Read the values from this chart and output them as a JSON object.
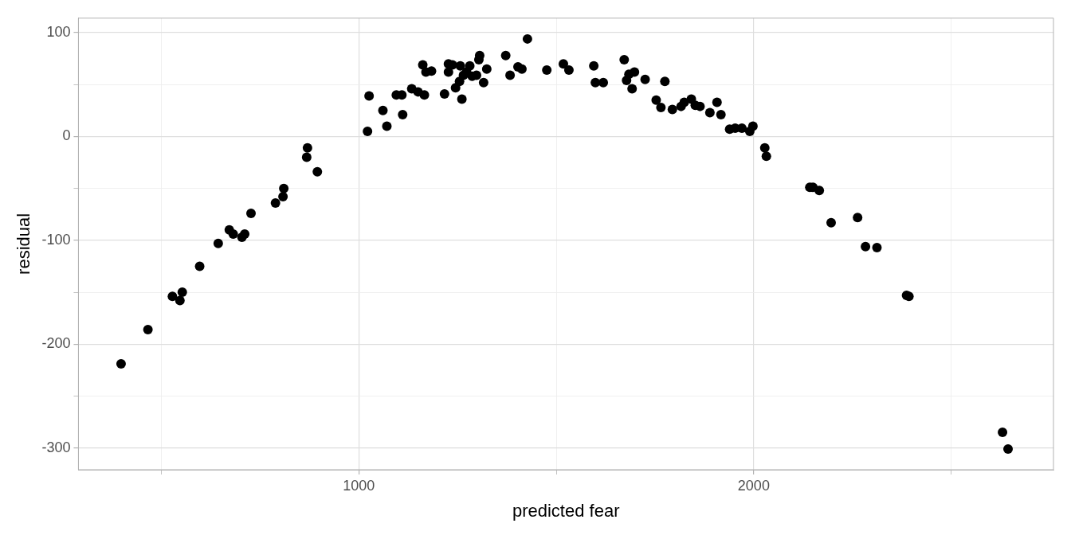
{
  "chart_data": {
    "type": "scatter",
    "xlabel": "predicted fear",
    "ylabel": "residual",
    "x": [
      398,
      466,
      528,
      547,
      553,
      597,
      644,
      672,
      682,
      704,
      711,
      727,
      789,
      808,
      810,
      870,
      868,
      895,
      1022,
      1026,
      1061,
      1071,
      1095,
      1109,
      1111,
      1134,
      1150,
      1162,
      1166,
      1170,
      1184,
      1217,
      1227,
      1227,
      1237,
      1245,
      1255,
      1257,
      1261,
      1265,
      1273,
      1281,
      1287,
      1298,
      1304,
      1306,
      1316,
      1324,
      1372,
      1383,
      1403,
      1413,
      1427,
      1476,
      1518,
      1532,
      1595,
      1599,
      1619,
      1672,
      1678,
      1684,
      1692,
      1698,
      1725,
      1753,
      1765,
      1775,
      1794,
      1816,
      1824,
      1842,
      1852,
      1864,
      1889,
      1907,
      1917,
      1939,
      1953,
      1970,
      1990,
      1998,
      2028,
      2032,
      2142,
      2150,
      2166,
      2196,
      2263,
      2283,
      2312,
      2387,
      2393,
      2630,
      2644
    ],
    "values": [
      -219,
      -186,
      -154,
      -158,
      -150,
      -125,
      -103,
      -90,
      -94,
      -97,
      -94,
      -74,
      -64,
      -58,
      -50,
      -11,
      -20,
      -34,
      5,
      39,
      25,
      10,
      40,
      40,
      21,
      46,
      43,
      69,
      40,
      62,
      63,
      41,
      70,
      62,
      69,
      47,
      53,
      68,
      36,
      59,
      62,
      68,
      58,
      59,
      74,
      78,
      52,
      65,
      78,
      59,
      67,
      65,
      94,
      64,
      70,
      64,
      68,
      52,
      52,
      74,
      54,
      60,
      46,
      62,
      55,
      35,
      28,
      53,
      26,
      29,
      33,
      36,
      30,
      29,
      23,
      33,
      21,
      7,
      8,
      8,
      5,
      10,
      -11,
      -19,
      -49,
      -49,
      -52,
      -83,
      -78,
      -106,
      -107,
      -153,
      -154,
      -285,
      -301
    ],
    "color": "#000000",
    "marker": "circle",
    "xlim": [
      290,
      2759
    ],
    "ylim": [
      -321,
      114
    ],
    "xticks": [
      {
        "value": 500,
        "label": null
      },
      1000,
      {
        "value": 1500,
        "label": null
      },
      2000,
      {
        "value": 2500,
        "label": null
      }
    ],
    "yticks": [
      -300,
      {
        "value": -250,
        "label": null
      },
      -200,
      {
        "value": -150,
        "label": null
      },
      -100,
      {
        "value": -50,
        "label": null
      },
      0,
      {
        "value": 50,
        "label": null
      },
      100
    ],
    "grid": true,
    "legend": false
  }
}
